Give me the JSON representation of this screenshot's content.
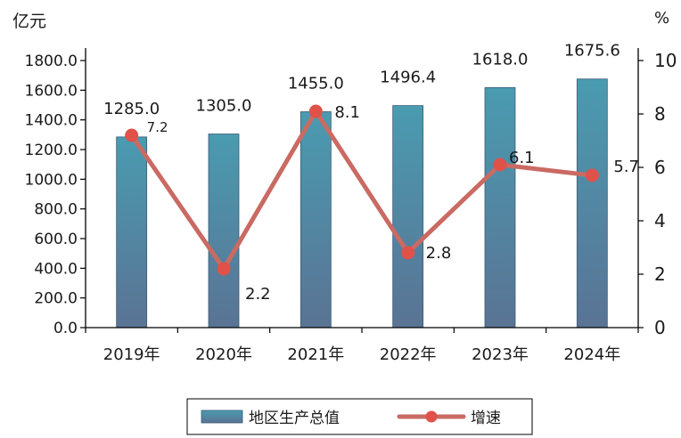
{
  "chart_data": {
    "type": "bar+line",
    "categories": [
      "2019年",
      "2020年",
      "2021年",
      "2022年",
      "2023年",
      "2024年"
    ],
    "y_left_unit": "亿元",
    "y_right_unit": "%",
    "y_left_ticks": [
      "0.0",
      "200.0",
      "400.0",
      "600.0",
      "800.0",
      "1000.0",
      "1200.0",
      "1400.0",
      "1600.0",
      "1800.0"
    ],
    "y_right_ticks": [
      "0",
      "2",
      "4",
      "6",
      "8",
      "10"
    ],
    "ylim_left": [
      0,
      1800
    ],
    "ylim_right": [
      0,
      10
    ],
    "grid": false,
    "legend_position": "bottom",
    "series": [
      {
        "name": "地区生产总值",
        "type": "bar",
        "axis": "left",
        "values": [
          1285.0,
          1305.0,
          1455.0,
          1496.4,
          1618.0,
          1675.6
        ],
        "labels": [
          "1285.0",
          "1305.0",
          "1455.0",
          "1496.4",
          "1618.0",
          "1675.6"
        ],
        "color_top": "#4a9bb0",
        "color_bottom": "#5a7394"
      },
      {
        "name": "增速",
        "type": "line",
        "axis": "right",
        "values": [
          7.2,
          2.2,
          8.1,
          2.8,
          6.1,
          5.7
        ],
        "labels": [
          "7.2",
          "2.2",
          "8.1",
          "2.8",
          "6.1",
          "5.7"
        ],
        "color": "#c96a63",
        "marker_color": "#e0514a"
      }
    ]
  }
}
